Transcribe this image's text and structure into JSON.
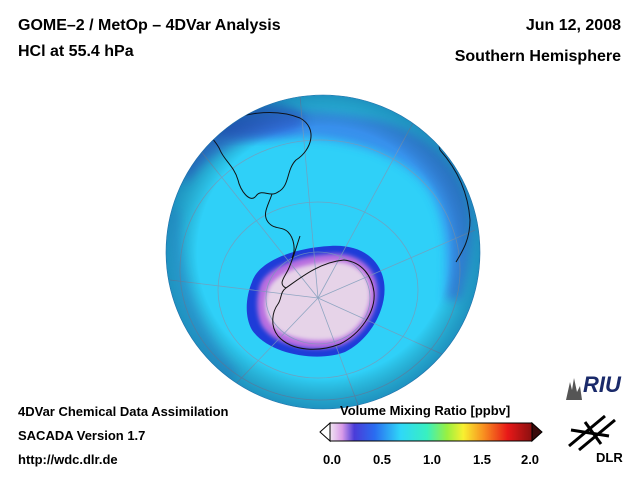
{
  "header": {
    "title": "GOME–2 / MetOp – 4DVar Analysis",
    "subtitle": "HCl at 55.4 hPa",
    "date": "Jun 12, 2008",
    "region": "Southern Hemisphere"
  },
  "footer": {
    "line1": "4DVar Chemical Data Assimilation",
    "line2": "SACADA Version 1.7",
    "line3": "http://wdc.dlr.de"
  },
  "colorbar": {
    "title": "Volume Mixing Ratio [ppbv]",
    "ticks": [
      "0.0",
      "0.5",
      "1.0",
      "1.5",
      "2.0"
    ],
    "range": [
      0.0,
      2.0
    ]
  },
  "logos": {
    "riu": "RIU",
    "dlr": "DLR"
  },
  "colors": {
    "ocean_field": "#2fd0f8",
    "band_high": "#3a7ae8",
    "vortex_edge": "#1e3cd8",
    "vortex_low": "#e6d3e8",
    "logo_blue": "#1a2a6a"
  }
}
